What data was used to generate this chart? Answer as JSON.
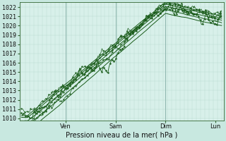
{
  "bg_color": "#c8e8e0",
  "plot_bg_color": "#d8f0ea",
  "grid_color_major": "#90b8b0",
  "grid_color_minor": "#b8d8d0",
  "line_color": "#1a5c1a",
  "ylabel_ticks": [
    1010,
    1011,
    1012,
    1013,
    1014,
    1015,
    1016,
    1017,
    1018,
    1019,
    1020,
    1021,
    1022
  ],
  "ylim": [
    1009.8,
    1022.5
  ],
  "xlabel": "Pression niveau de la mer( hPa )",
  "day_labels": [
    "Ven",
    "Sam",
    "Dim",
    "Lun"
  ],
  "tick_fontsize": 6,
  "label_fontsize": 7
}
